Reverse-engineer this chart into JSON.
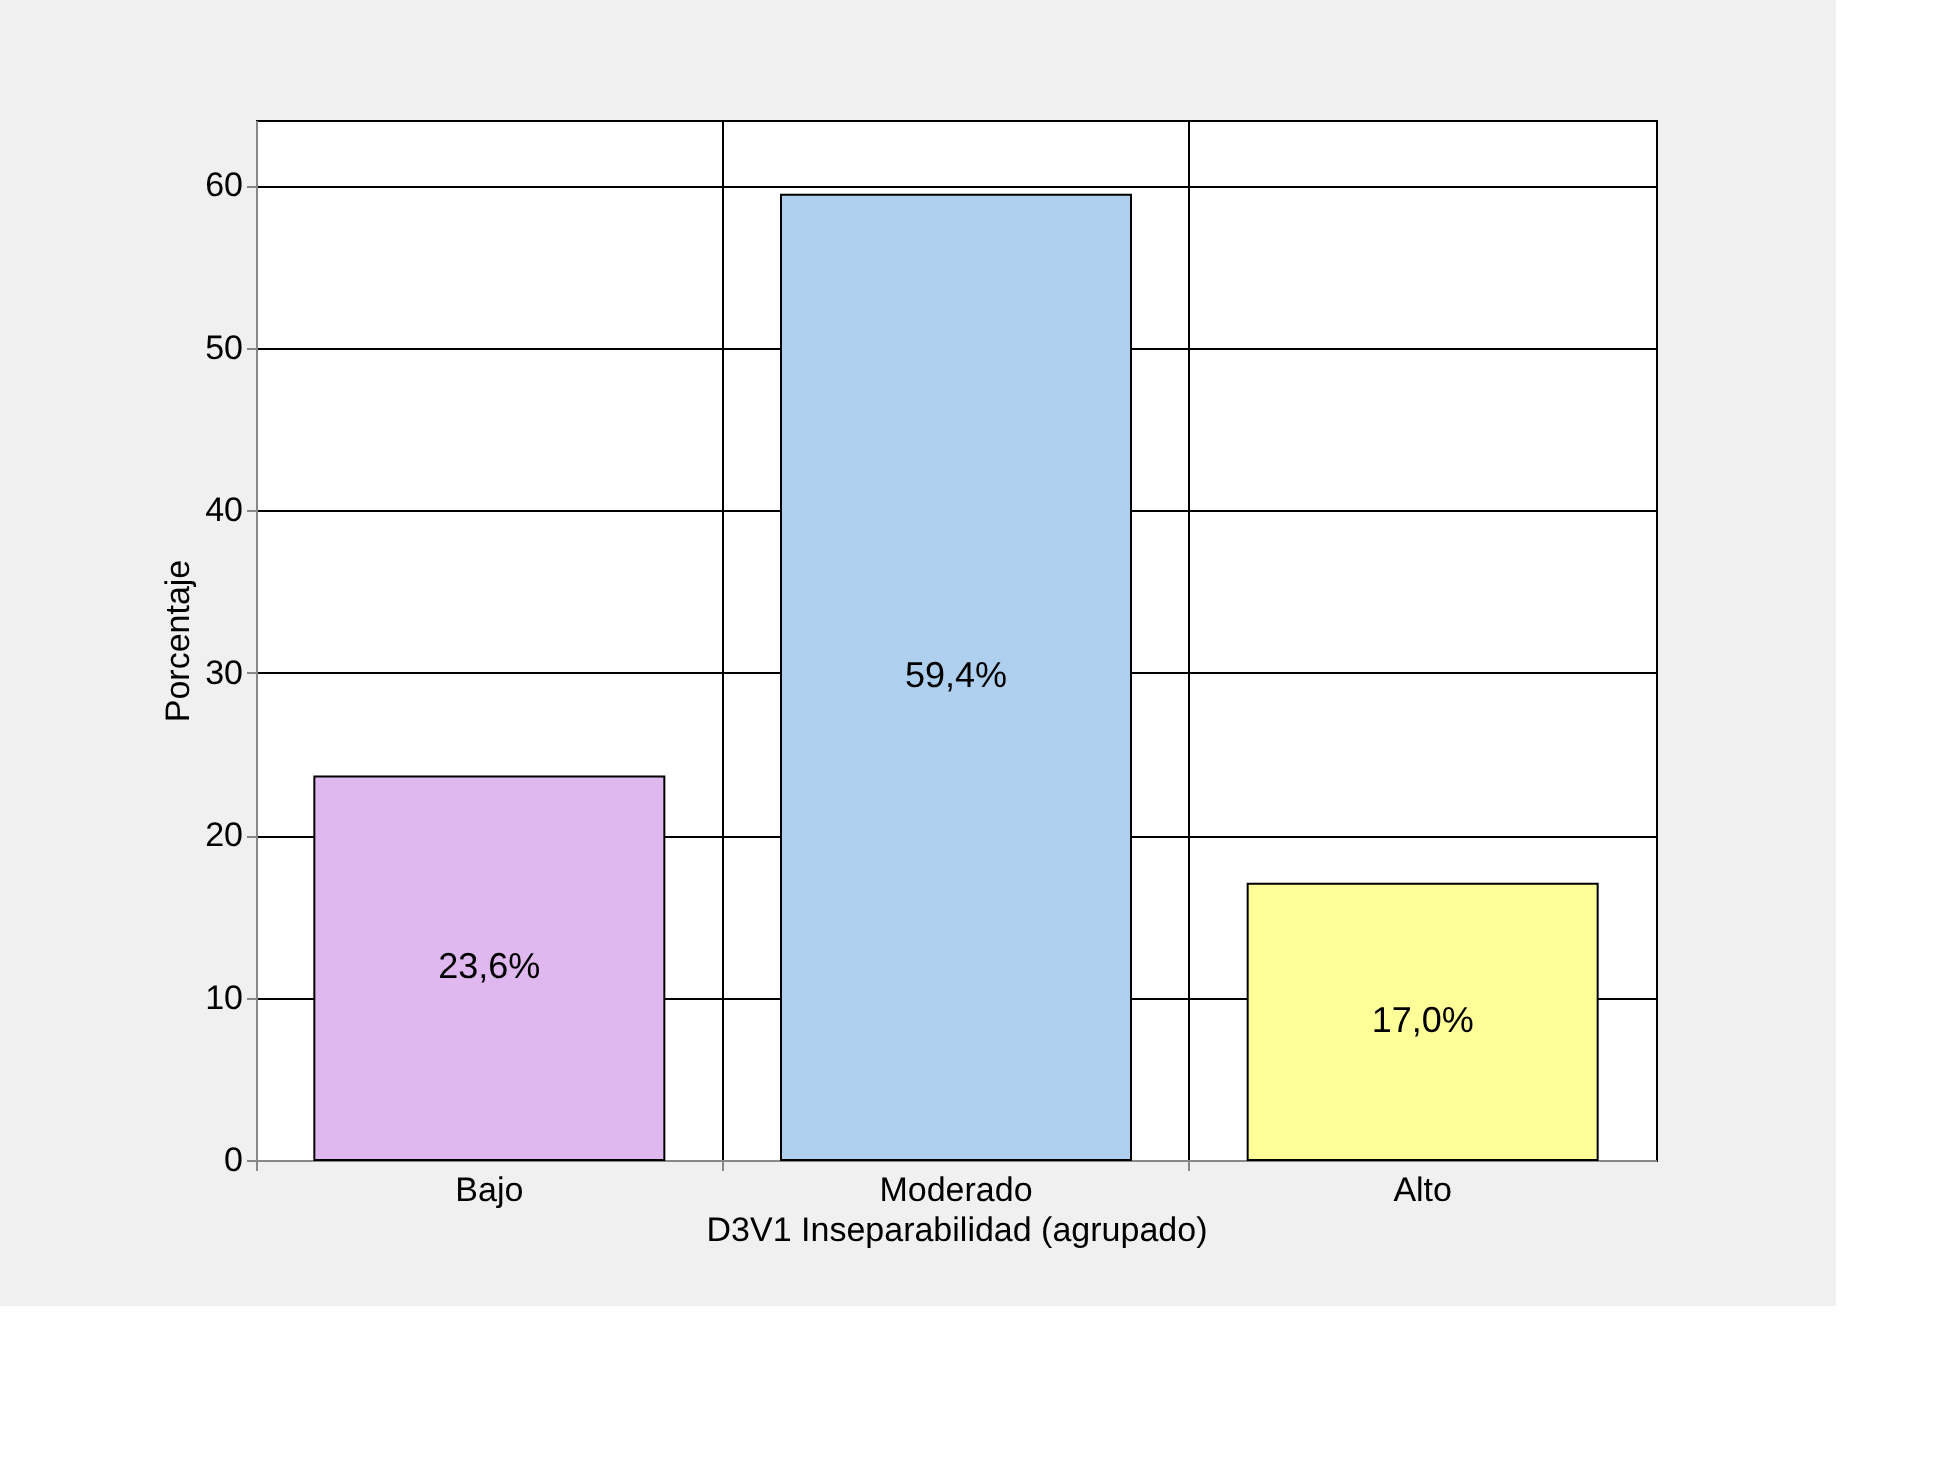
{
  "chart_data": {
    "type": "bar",
    "xlabel": "D3V1 Inseparabilidad (agrupado)",
    "ylabel": "Porcentaje",
    "categories": [
      "Bajo",
      "Moderado",
      "Alto"
    ],
    "values": [
      23.6,
      59.4,
      17.0
    ],
    "colors": [
      "#dfb8f0",
      "#aed0ee",
      "#ffff99"
    ],
    "value_labels": [
      "23,6%",
      "59,4%",
      "17,0%"
    ],
    "ylim": [
      0,
      64
    ],
    "yticks": [
      0,
      10,
      20,
      30,
      40,
      50,
      60
    ],
    "grid": true
  }
}
